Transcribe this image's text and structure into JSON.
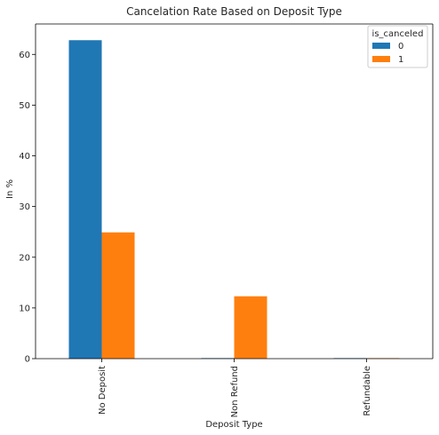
{
  "chart_data": {
    "type": "bar",
    "title": "Cancelation Rate Based on Deposit Type",
    "xlabel": "Deposit Type",
    "ylabel": "In %",
    "categories": [
      "No Deposit",
      "Non Refund",
      "Refundable"
    ],
    "series": [
      {
        "name": "0",
        "values": [
          62.8,
          0.1,
          0.1
        ],
        "color": "#1f77b4"
      },
      {
        "name": "1",
        "values": [
          24.9,
          12.3,
          0.05
        ],
        "color": "#ff7f0e"
      }
    ],
    "ylim": [
      0,
      66
    ],
    "yticks": [
      0,
      10,
      20,
      30,
      40,
      50,
      60
    ],
    "legend": {
      "title": "is_canceled",
      "position": "top-right"
    },
    "grid": false
  }
}
